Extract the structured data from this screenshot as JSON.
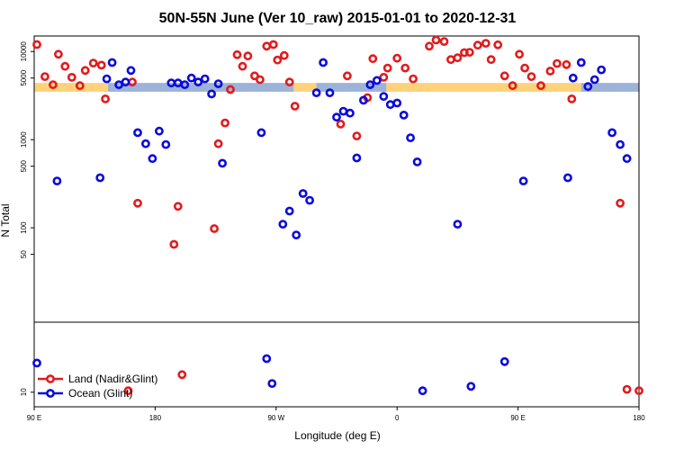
{
  "chart_data": {
    "type": "scatter",
    "title": "50N-55N June (Ver 10_raw)   2015-01-01 to 2020-12-31",
    "xlabel": "Longitude (deg E)",
    "ylabel": "N Total",
    "x_ticks": [
      {
        "value": 90,
        "label": "90 E"
      },
      {
        "value": 180,
        "label": "180"
      },
      {
        "value": 270,
        "label": "90 W"
      },
      {
        "value": 360,
        "label": "0"
      },
      {
        "value": 450,
        "label": "90 E"
      },
      {
        "value": 540,
        "label": "180"
      }
    ],
    "xlim": [
      90,
      540
    ],
    "ylog_lim": [
      8.5,
      15000
    ],
    "linear_lim": [
      0,
      58
    ],
    "split_value": 50,
    "y_ticks_log": [
      "10000",
      "5000",
      "1000",
      "500",
      "100",
      "50"
    ],
    "y_ticks_linear": [
      "10"
    ],
    "colors": {
      "land": "#e31a1c",
      "ocean": "#0a0adc",
      "band_land": "#ffd27a",
      "band_ocean": "#9db3d9"
    },
    "band": {
      "y_low": 3500,
      "y_high": 4400
    },
    "series": [
      {
        "name": "Land (Nadir&Glint)",
        "color": "#e31a1c",
        "points": [
          [
            92,
            12000
          ],
          [
            98,
            5200
          ],
          [
            104,
            4200
          ],
          [
            108,
            9300
          ],
          [
            113,
            6800
          ],
          [
            118,
            5100
          ],
          [
            124,
            4100
          ],
          [
            128,
            6100
          ],
          [
            134,
            7400
          ],
          [
            140,
            7000
          ],
          [
            143,
            2900
          ],
          [
            163,
            4500
          ],
          [
            167,
            190
          ],
          [
            194,
            65
          ],
          [
            197,
            175
          ],
          [
            200,
            22
          ],
          [
            224,
            98
          ],
          [
            227,
            900
          ],
          [
            232,
            1550
          ],
          [
            236,
            3700
          ],
          [
            241,
            9200
          ],
          [
            245,
            6800
          ],
          [
            249,
            8900
          ],
          [
            254,
            5300
          ],
          [
            258,
            4800
          ],
          [
            263,
            11500
          ],
          [
            268,
            12000
          ],
          [
            271,
            8000
          ],
          [
            276,
            9000
          ],
          [
            280,
            4500
          ],
          [
            284,
            2400
          ],
          [
            318,
            1500
          ],
          [
            323,
            5300
          ],
          [
            330,
            1100
          ],
          [
            338,
            3000
          ],
          [
            342,
            8300
          ],
          [
            350,
            5100
          ],
          [
            353,
            6500
          ],
          [
            360,
            8400
          ],
          [
            366,
            6500
          ],
          [
            372,
            4900
          ],
          [
            384,
            11500
          ],
          [
            389,
            13500
          ],
          [
            395,
            13000
          ],
          [
            400,
            8100
          ],
          [
            405,
            8500
          ],
          [
            410,
            9700
          ],
          [
            414,
            9800
          ],
          [
            420,
            11800
          ],
          [
            426,
            12400
          ],
          [
            430,
            8100
          ],
          [
            435,
            11900
          ],
          [
            440,
            5300
          ],
          [
            446,
            4100
          ],
          [
            451,
            9300
          ],
          [
            455,
            6500
          ],
          [
            460,
            5200
          ],
          [
            467,
            4100
          ],
          [
            474,
            6000
          ],
          [
            479,
            7300
          ],
          [
            486,
            7100
          ],
          [
            490,
            2900
          ],
          [
            526,
            190
          ],
          [
            540,
            11
          ],
          [
            531,
            12
          ],
          [
            160,
            11
          ]
        ]
      },
      {
        "name": "Ocean (Glint)",
        "color": "#0a0adc",
        "points": [
          [
            92,
            30
          ],
          [
            107,
            340
          ],
          [
            139,
            370
          ],
          [
            144,
            4900
          ],
          [
            148,
            7500
          ],
          [
            153,
            4200
          ],
          [
            158,
            4500
          ],
          [
            162,
            6100
          ],
          [
            167,
            1200
          ],
          [
            173,
            900
          ],
          [
            178,
            610
          ],
          [
            183,
            1250
          ],
          [
            188,
            880
          ],
          [
            192,
            4400
          ],
          [
            197,
            4400
          ],
          [
            202,
            4200
          ],
          [
            207,
            5000
          ],
          [
            212,
            4500
          ],
          [
            217,
            4900
          ],
          [
            222,
            3300
          ],
          [
            227,
            4300
          ],
          [
            230,
            540
          ],
          [
            259,
            1200
          ],
          [
            263,
            33
          ],
          [
            267,
            16
          ],
          [
            275,
            110
          ],
          [
            280,
            155
          ],
          [
            285,
            83
          ],
          [
            290,
            245
          ],
          [
            295,
            205
          ],
          [
            300,
            3400
          ],
          [
            305,
            7500
          ],
          [
            310,
            3400
          ],
          [
            315,
            1800
          ],
          [
            320,
            2100
          ],
          [
            325,
            2000
          ],
          [
            330,
            620
          ],
          [
            335,
            2800
          ],
          [
            340,
            4200
          ],
          [
            345,
            4700
          ],
          [
            350,
            3100
          ],
          [
            355,
            2500
          ],
          [
            360,
            2600
          ],
          [
            365,
            1900
          ],
          [
            370,
            1050
          ],
          [
            375,
            560
          ],
          [
            379,
            11
          ],
          [
            405,
            110
          ],
          [
            415,
            14
          ],
          [
            440,
            31
          ],
          [
            454,
            340
          ],
          [
            491,
            5000
          ],
          [
            502,
            4000
          ],
          [
            497,
            7500
          ],
          [
            507,
            4800
          ],
          [
            512,
            6200
          ],
          [
            520,
            1200
          ],
          [
            526,
            880
          ],
          [
            531,
            610
          ],
          [
            487,
            370
          ]
        ]
      }
    ],
    "legend": {
      "position": "bottom-left",
      "entries": [
        "Land (Nadir&Glint)",
        "Ocean (Glint)"
      ]
    }
  }
}
